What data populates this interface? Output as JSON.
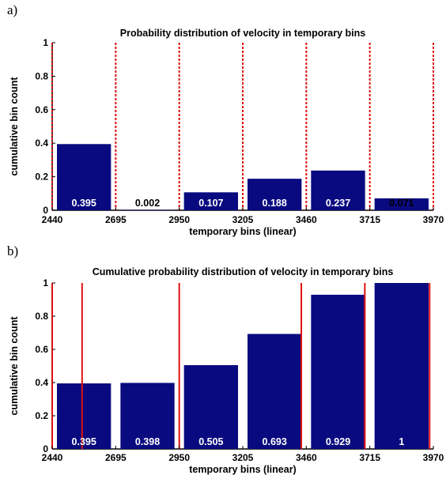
{
  "panels": [
    {
      "letter": "a)"
    },
    {
      "letter": "b)"
    }
  ],
  "colors": {
    "bar": "#0a0a80",
    "divider": "#e01010",
    "bar_label": "#ffffff",
    "bar_label_dark": "#000000"
  },
  "chart_data": [
    {
      "type": "bar",
      "title": "Probability distribution of velocity in temporary bins",
      "xlabel": "temporary bins (linear)",
      "ylabel": "cumulative bin count",
      "x_ticks": [
        "2440",
        "2695",
        "2950",
        "3205",
        "3460",
        "3715",
        "3970"
      ],
      "y_ticks": [
        "0",
        "0.2",
        "0.4",
        "0.6",
        "0.8",
        "1"
      ],
      "ylim": [
        0,
        1
      ],
      "xlim": [
        2440,
        3970
      ],
      "bin_edges": [
        2440,
        2695,
        2950,
        3205,
        3460,
        3715,
        3970
      ],
      "values": [
        0.395,
        0.002,
        0.107,
        0.188,
        0.237,
        0.071
      ],
      "value_labels": [
        "0.395",
        "0.002",
        "0.107",
        "0.188",
        "0.237",
        "0.071"
      ],
      "dividers": [
        2440,
        2695,
        2950,
        3205,
        3460,
        3715,
        3970
      ],
      "divider_style": "dotted",
      "grid": false
    },
    {
      "type": "bar",
      "title": "Cumulative probability distribution of velocity in temporary bins",
      "xlabel": "temporary bins (linear)",
      "ylabel": "cumulative bin count",
      "x_ticks": [
        "2440",
        "2695",
        "2950",
        "3205",
        "3460",
        "3715",
        "3970"
      ],
      "y_ticks": [
        "0",
        "0.2",
        "0.4",
        "0.6",
        "0.8",
        "1"
      ],
      "ylim": [
        0,
        1
      ],
      "xlim": [
        2440,
        3970
      ],
      "bin_edges": [
        2440,
        2695,
        2950,
        3205,
        3460,
        3715,
        3970
      ],
      "values": [
        0.395,
        0.398,
        0.505,
        0.693,
        0.929,
        1
      ],
      "value_labels": [
        "0.395",
        "0.398",
        "0.505",
        "0.693",
        "0.929",
        "1"
      ],
      "dividers": [
        2440,
        2560,
        2950,
        3440,
        3695,
        3955
      ],
      "divider_style": "solid",
      "grid": false
    }
  ]
}
